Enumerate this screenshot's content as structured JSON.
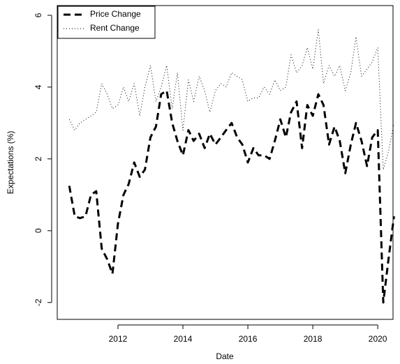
{
  "chart_data": {
    "type": "line",
    "xlabel": "Date",
    "ylabel": "Expectations (%)",
    "x": [
      2010.5,
      2010.67,
      2010.83,
      2011.0,
      2011.17,
      2011.33,
      2011.5,
      2011.67,
      2011.83,
      2012.0,
      2012.17,
      2012.33,
      2012.5,
      2012.67,
      2012.83,
      2013.0,
      2013.17,
      2013.33,
      2013.5,
      2013.67,
      2013.83,
      2014.0,
      2014.17,
      2014.33,
      2014.5,
      2014.67,
      2014.83,
      2015.0,
      2015.17,
      2015.33,
      2015.5,
      2015.67,
      2015.83,
      2016.0,
      2016.17,
      2016.33,
      2016.5,
      2016.67,
      2016.83,
      2017.0,
      2017.17,
      2017.33,
      2017.5,
      2017.67,
      2017.83,
      2018.0,
      2018.17,
      2018.33,
      2018.5,
      2018.67,
      2018.83,
      2019.0,
      2019.17,
      2019.33,
      2019.5,
      2019.67,
      2019.83,
      2020.0,
      2020.17,
      2020.33,
      2020.5
    ],
    "series": [
      {
        "name": "Price Change",
        "color": "#000000",
        "linestyle": "dashed",
        "values": [
          1.25,
          0.4,
          0.35,
          0.4,
          1.0,
          1.1,
          -0.5,
          -0.8,
          -1.2,
          0.2,
          1.0,
          1.3,
          1.9,
          1.5,
          1.7,
          2.6,
          2.9,
          3.8,
          3.9,
          3.0,
          2.5,
          2.1,
          2.8,
          2.5,
          2.7,
          2.3,
          2.7,
          2.4,
          2.6,
          2.8,
          3.0,
          2.6,
          2.4,
          1.9,
          2.3,
          2.1,
          2.1,
          2.0,
          2.5,
          3.1,
          2.6,
          3.3,
          3.6,
          2.3,
          3.5,
          3.2,
          3.8,
          3.5,
          2.4,
          2.9,
          2.5,
          1.6,
          2.4,
          3.0,
          2.5,
          1.8,
          2.6,
          2.8,
          -2.0,
          -0.8,
          0.4
        ]
      },
      {
        "name": "Rent Change",
        "color": "#000000",
        "linestyle": "dotted",
        "values": [
          3.1,
          2.8,
          3.0,
          3.1,
          3.2,
          3.3,
          4.1,
          3.8,
          3.4,
          3.5,
          4.0,
          3.6,
          4.1,
          3.2,
          4.0,
          4.6,
          3.6,
          4.0,
          4.6,
          3.4,
          4.4,
          2.8,
          4.2,
          3.6,
          4.3,
          3.9,
          3.3,
          3.9,
          4.1,
          4.0,
          4.4,
          4.3,
          4.2,
          3.6,
          3.7,
          3.7,
          4.0,
          3.8,
          4.2,
          3.9,
          4.0,
          4.9,
          4.4,
          4.6,
          5.1,
          4.5,
          5.6,
          4.1,
          4.6,
          4.3,
          4.6,
          3.9,
          4.4,
          5.4,
          4.3,
          4.5,
          4.7,
          5.1,
          1.7,
          2.2,
          3.0
        ]
      }
    ],
    "xlim": [
      2010.13,
      2020.47
    ],
    "xticks": [
      2012,
      2014,
      2016,
      2018,
      2020
    ],
    "ylim": [
      -2.47,
      6.27
    ],
    "yticks": [
      -2,
      0,
      2,
      4,
      6
    ],
    "legend": "top-left"
  }
}
